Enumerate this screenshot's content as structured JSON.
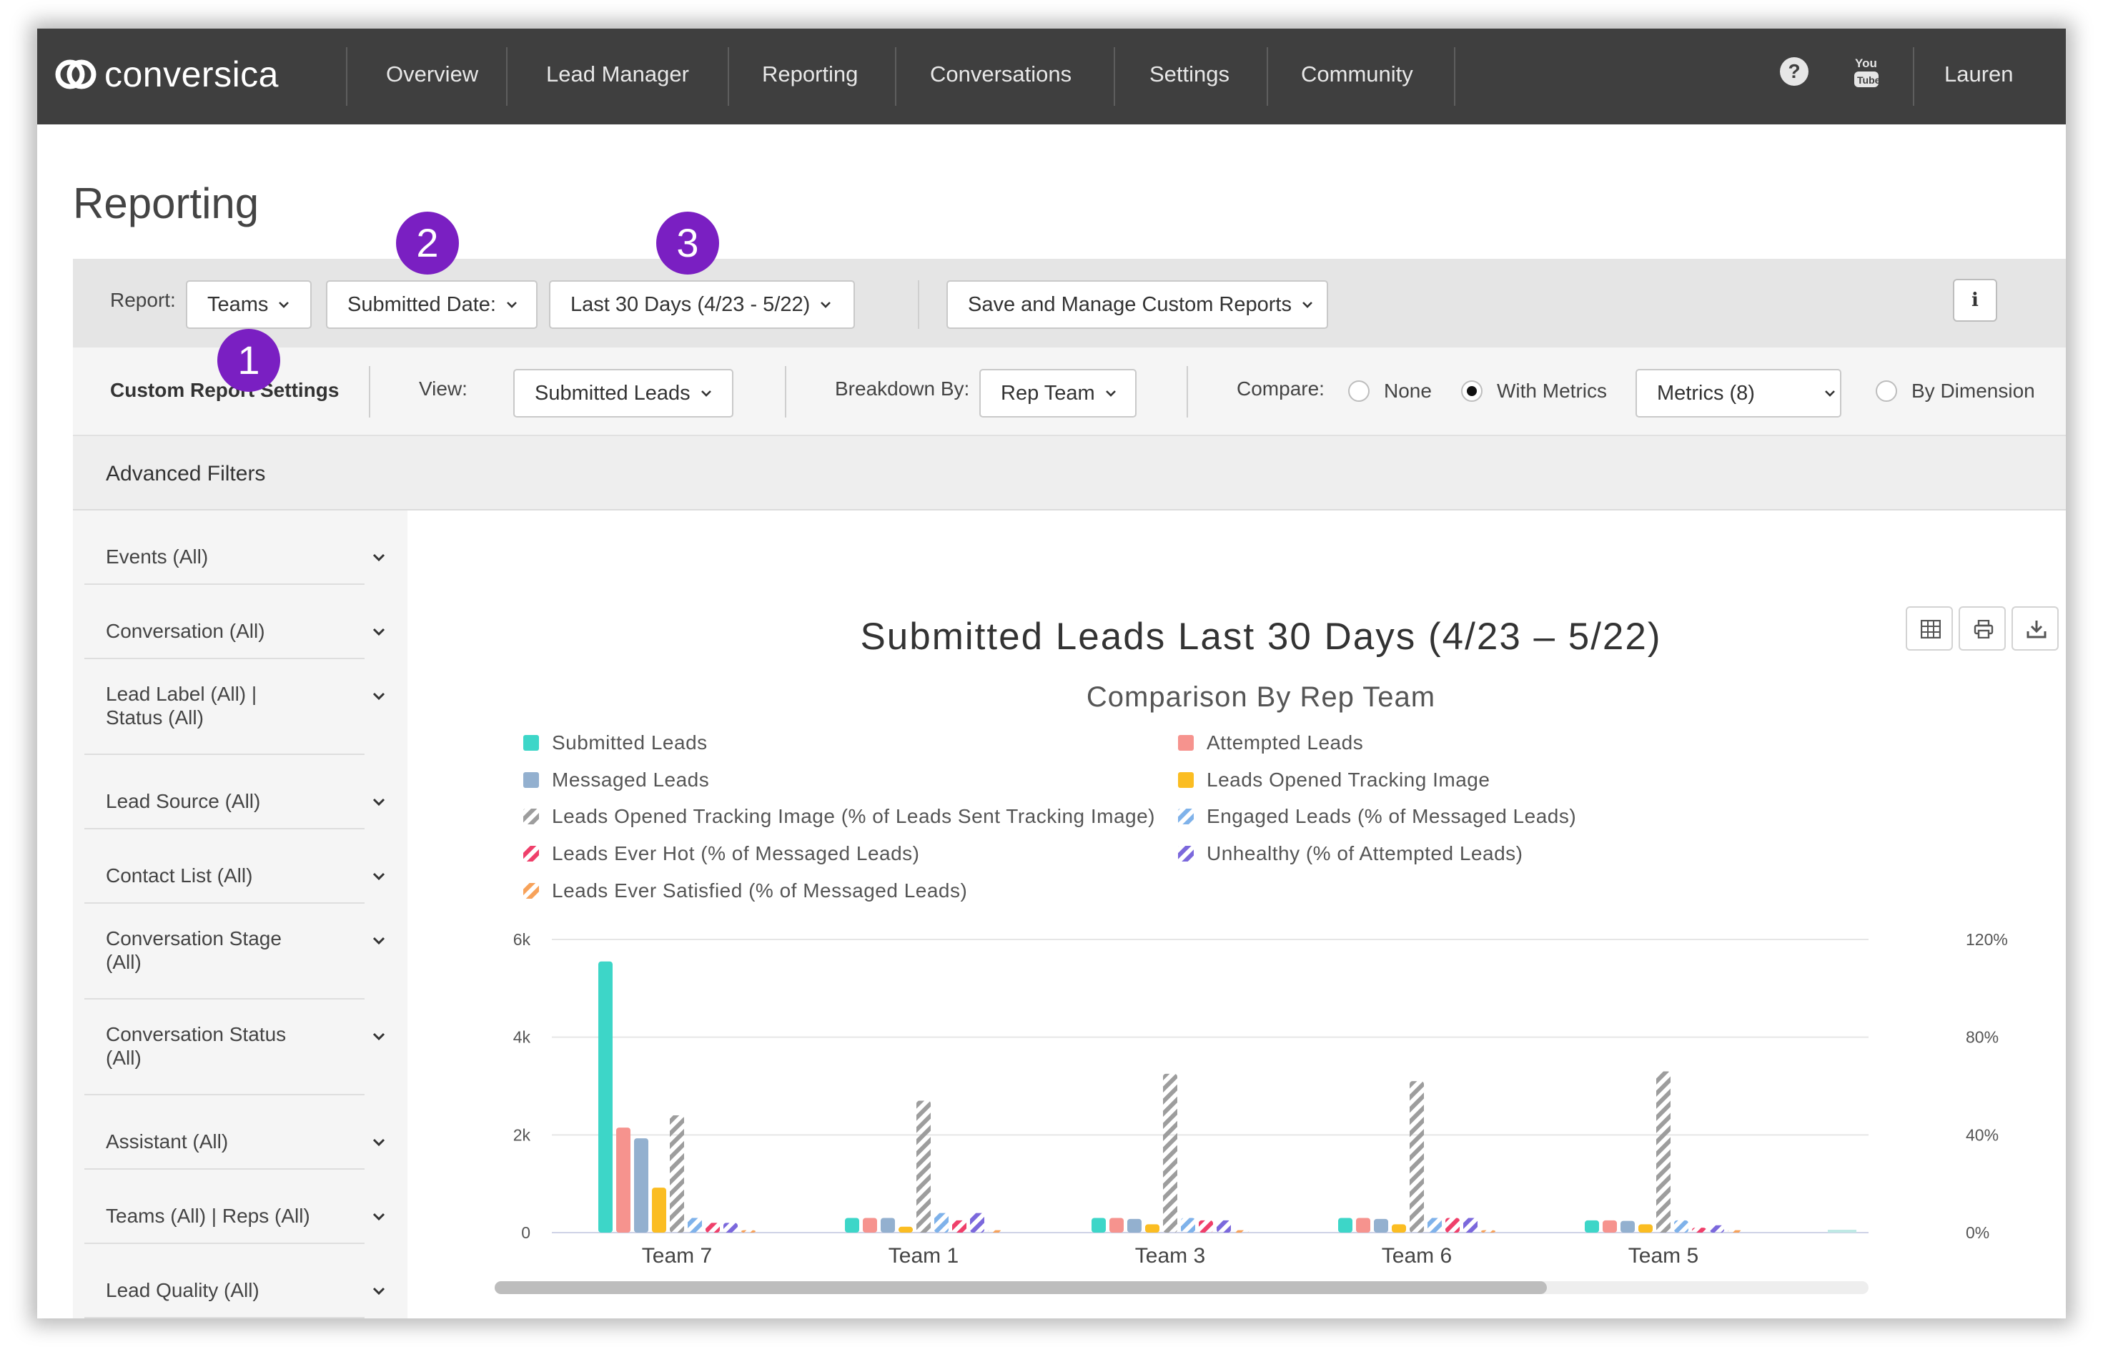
{
  "nav": {
    "brand": "conversica",
    "items": [
      "Overview",
      "Lead Manager",
      "Reporting",
      "Conversations",
      "Settings",
      "Community"
    ],
    "help": "?",
    "user": "Lauren"
  },
  "page": {
    "title": "Reporting"
  },
  "badges": [
    "1",
    "2",
    "3"
  ],
  "report_bar": {
    "report_label": "Report:",
    "report_value": "Teams",
    "date_field": "Submitted Date:",
    "date_range": "Last 30 Days (4/23 - 5/22)",
    "custom_reports": "Save and Manage Custom Reports",
    "info": "i"
  },
  "settings_bar": {
    "title": "Custom Report Settings",
    "view_label": "View:",
    "view_value": "Submitted Leads",
    "breakdown_label": "Breakdown By:",
    "breakdown_value": "Rep Team",
    "compare_label": "Compare:",
    "compare_options": [
      "None",
      "With Metrics",
      "By Dimension"
    ],
    "compare_selected": "With Metrics",
    "metrics_value": "Metrics (8)"
  },
  "advanced_filters": {
    "title": "Advanced Filters",
    "items": [
      [
        "Events (All)"
      ],
      [
        "Conversation (All)"
      ],
      [
        "Lead Label (All) |",
        "Status (All)"
      ],
      [
        "Lead Source (All)"
      ],
      [
        "Contact List (All)"
      ],
      [
        "Conversation Stage",
        "(All)"
      ],
      [
        "Conversation Status",
        "(All)"
      ],
      [
        "Assistant (All)"
      ],
      [
        "Teams (All) | Reps (All)"
      ],
      [
        "Lead Quality (All)"
      ]
    ]
  },
  "chart_data": {
    "type": "bar",
    "title": "Submitted Leads Last 30 Days (4/23 – 5/22)",
    "subtitle": "Comparison By Rep Team",
    "categories": [
      "Team 7",
      "Team 1",
      "Team 3",
      "Team 6",
      "Team 5"
    ],
    "ylim_left": [
      0,
      6000
    ],
    "yticks_left": [
      "0",
      "2k",
      "4k",
      "6k"
    ],
    "ylim_right": [
      0,
      120
    ],
    "yticks_right": [
      "0%",
      "40%",
      "80%",
      "120%"
    ],
    "grid": true,
    "legend_placement": "top",
    "series": [
      {
        "name": "Submitted Leads",
        "axis": "left",
        "color": "#3dd6c8",
        "pattern": false,
        "values": [
          5550,
          300,
          300,
          300,
          250
        ]
      },
      {
        "name": "Attempted Leads",
        "axis": "left",
        "color": "#f6938e",
        "pattern": false,
        "values": [
          2150,
          300,
          300,
          300,
          250
        ]
      },
      {
        "name": "Messaged Leads",
        "axis": "left",
        "color": "#93b0cf",
        "pattern": false,
        "values": [
          1930,
          300,
          280,
          280,
          240
        ]
      },
      {
        "name": "Leads Opened Tracking Image",
        "axis": "left",
        "color": "#fbbd22",
        "pattern": false,
        "values": [
          920,
          120,
          170,
          170,
          170
        ]
      },
      {
        "name": "Leads Opened Tracking Image (% of Leads Sent Tracking Image)",
        "axis": "right",
        "color": "#9d9d9d",
        "pattern": true,
        "values": [
          48,
          54,
          65,
          62,
          66
        ]
      },
      {
        "name": "Engaged Leads (% of Messaged Leads)",
        "axis": "right",
        "color": "#7fb2ea",
        "pattern": true,
        "values": [
          6,
          8,
          6,
          6,
          5
        ]
      },
      {
        "name": "Leads Ever Hot (% of Messaged Leads)",
        "axis": "right",
        "color": "#ef3f6a",
        "pattern": true,
        "values": [
          4,
          5,
          5,
          6,
          2
        ]
      },
      {
        "name": "Unhealthy (% of Attempted Leads)",
        "axis": "right",
        "color": "#7b68dc",
        "pattern": true,
        "values": [
          4,
          8,
          5,
          6,
          3
        ]
      },
      {
        "name": "Leads Ever Satisfied (% of Messaged Leads)",
        "axis": "right",
        "color": "#f7a25a",
        "pattern": true,
        "values": [
          1,
          1,
          1,
          1,
          1
        ]
      }
    ]
  }
}
